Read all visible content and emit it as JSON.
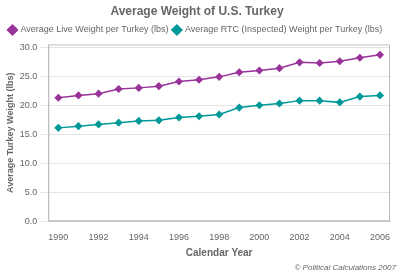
{
  "chart_data": {
    "type": "line",
    "title": "Average Weight of U.S. Turkey",
    "x_label": "Calendar Year",
    "y_label": "Average Turkey Weight (lbs)",
    "x": [
      1990,
      1991,
      1992,
      1993,
      1994,
      1995,
      1996,
      1997,
      1998,
      1999,
      2000,
      2001,
      2002,
      2003,
      2004,
      2005,
      2006
    ],
    "series": [
      {
        "name": "Average Live Weight per Turkey (lbs)",
        "color": "#993399",
        "marker": "diamond",
        "values": [
          21.3,
          21.7,
          22.0,
          22.8,
          23.0,
          23.3,
          24.1,
          24.4,
          24.9,
          25.7,
          26.0,
          26.4,
          27.4,
          27.3,
          27.6,
          28.2,
          28.7
        ]
      },
      {
        "name": "Average RTC (Inspected) Weight per Turkey (lbs)",
        "color": "#009999",
        "marker": "diamond",
        "values": [
          16.1,
          16.4,
          16.7,
          17.0,
          17.3,
          17.4,
          17.9,
          18.1,
          18.4,
          19.6,
          20.0,
          20.3,
          20.8,
          20.8,
          20.5,
          21.5,
          21.7
        ]
      }
    ],
    "xlim": [
      1989.5,
      2006.5
    ],
    "xticks": [
      1990,
      1992,
      1994,
      1996,
      1998,
      2000,
      2002,
      2004,
      2006
    ],
    "ylim": [
      0,
      30.5
    ],
    "yticks": [
      {
        "value": 0,
        "label": "0.0"
      },
      {
        "value": 5,
        "label": "5.0"
      },
      {
        "value": 10,
        "label": "10.0"
      },
      {
        "value": 15,
        "label": "15.0"
      },
      {
        "value": 20,
        "label": "20.0"
      },
      {
        "value": 25,
        "label": "25.0"
      },
      {
        "value": 30,
        "label": "30.0"
      }
    ],
    "grid": "y",
    "legend": "upper left",
    "annotations": [
      "© Political Calculations 2007"
    ]
  }
}
